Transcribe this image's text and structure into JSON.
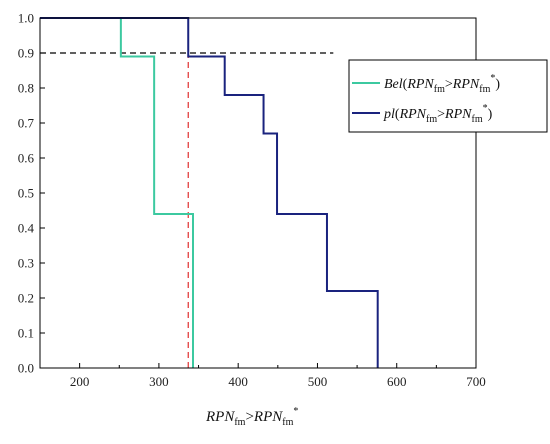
{
  "chart_data": {
    "type": "line",
    "subtype": "step",
    "title": "",
    "xlabel": {
      "main": "RPN",
      "sub": "fm",
      "op": ">",
      "main2": "RPN",
      "sub2": "fm",
      "sup2": "*"
    },
    "ylabel": "",
    "xlim": [
      150,
      700
    ],
    "ylim": [
      0.0,
      1.0
    ],
    "xticks": [
      200,
      300,
      400,
      500,
      600,
      700
    ],
    "yticks": [
      0.0,
      0.1,
      0.2,
      0.3,
      0.4,
      0.5,
      0.6,
      0.7,
      0.8,
      0.9,
      1.0
    ],
    "grid": false,
    "legend_position": "top-right",
    "series": [
      {
        "name": "Bel(RPNfm>RPNfm*)",
        "legend": {
          "prefix": "Bel",
          "main": "RPN",
          "sub": "fm",
          "op": ">",
          "main2": "RPN",
          "sub2": "fm",
          "sup2": "*"
        },
        "color": "#3cc9a0",
        "points": [
          [
            150,
            1.0
          ],
          [
            252,
            1.0
          ],
          [
            252,
            0.89
          ],
          [
            294,
            0.89
          ],
          [
            294,
            0.44
          ],
          [
            343,
            0.44
          ],
          [
            343,
            0.0
          ]
        ]
      },
      {
        "name": "pl(RPNfm>RPNfm*)",
        "legend": {
          "prefix": "pl",
          "main": "RPN",
          "sub": "fm",
          "op": ">",
          "main2": "RPN",
          "sub2": "fm",
          "sup2": "*"
        },
        "color": "#1a237e",
        "points": [
          [
            150,
            1.0
          ],
          [
            337,
            1.0
          ],
          [
            337,
            0.89
          ],
          [
            383,
            0.89
          ],
          [
            383,
            0.78
          ],
          [
            432,
            0.78
          ],
          [
            432,
            0.67
          ],
          [
            449,
            0.67
          ],
          [
            449,
            0.44
          ],
          [
            512,
            0.44
          ],
          [
            512,
            0.22
          ],
          [
            576,
            0.22
          ],
          [
            576,
            0.0
          ]
        ]
      }
    ],
    "reference_lines": [
      {
        "orientation": "horizontal",
        "value": 0.9,
        "from": 150,
        "to": 520,
        "color": "#000000",
        "style": "dashed"
      },
      {
        "orientation": "vertical",
        "value": 337,
        "from": 0.0,
        "to": 1.0,
        "color": "#e03030",
        "style": "dashed"
      }
    ]
  }
}
